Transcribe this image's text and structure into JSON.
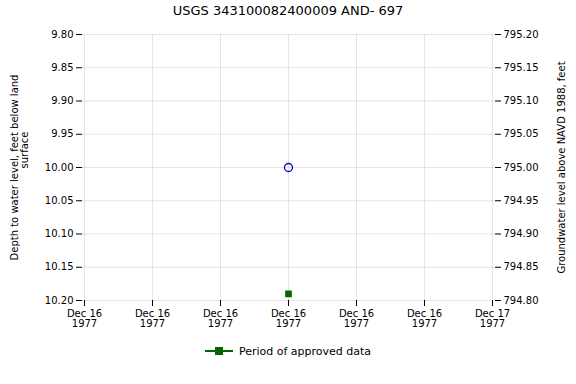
{
  "chart_data": {
    "type": "scatter",
    "title": "USGS 343100082400009 AND- 697",
    "categories": [
      "Dec 16\n1977",
      "Dec 16\n1977",
      "Dec 16\n1977",
      "Dec 16\n1977",
      "Dec 16\n1977",
      "Dec 16\n1977",
      "Dec 17\n1977"
    ],
    "series": [
      {
        "color": "#0000cc",
        "marker": "circle",
        "values": [
          null,
          null,
          null,
          10.0,
          null,
          null,
          null
        ]
      },
      {
        "name": "Period of approved data",
        "color": "#006600",
        "marker": "square",
        "values": [
          null,
          null,
          null,
          10.19,
          null,
          null,
          null
        ]
      }
    ],
    "ylabel": "Depth to water level, feet below land\n           surface",
    "y2label": "Groundwater level above NAVD 1988, feet",
    "ylim": [
      10.2,
      9.8
    ],
    "yticks": [
      {
        "value": 9.8,
        "label": "9.80"
      },
      9.85,
      {
        "value": 9.9,
        "label": "9.90"
      },
      9.95,
      {
        "value": 10.0,
        "label": "10.00"
      },
      10.05,
      {
        "value": 10.1,
        "label": "10.10"
      },
      10.15,
      {
        "value": 10.2,
        "label": "10.20"
      }
    ],
    "y2lim": [
      794.8,
      795.2
    ],
    "y2ticks": [
      {
        "value": 794.8,
        "label": "794.80"
      },
      794.85,
      {
        "value": 794.9,
        "label": "794.90"
      },
      794.95,
      {
        "value": 795.0,
        "label": "795.00"
      },
      795.05,
      {
        "value": 795.1,
        "label": "795.10"
      },
      795.15,
      {
        "value": 795.2,
        "label": "795.20"
      }
    ],
    "grid": true,
    "legend": "bottom"
  }
}
